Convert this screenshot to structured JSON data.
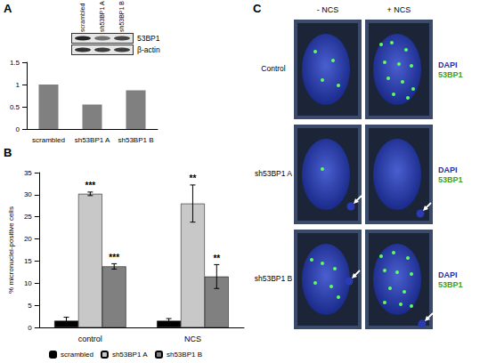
{
  "chart_data": [
    {
      "type": "bar",
      "categories": [
        "scrambled",
        "sh53BP1 A",
        "sh53BP1 B"
      ],
      "values": [
        1,
        0.55,
        0.87
      ],
      "color": "#808080",
      "ylim": [
        0,
        1.5
      ],
      "yticks": [
        0,
        0.5,
        1,
        1.5
      ],
      "grid": false
    },
    {
      "type": "bar",
      "ylabel": "% micronuclei-positive cells",
      "categories": [
        "control",
        "NCS"
      ],
      "series": [
        {
          "name": "scrambled",
          "color": "#000000",
          "values": [
            1.5,
            1.5
          ],
          "errors": [
            0.8,
            0.5
          ]
        },
        {
          "name": "sh53BP1 A",
          "color": "#c8c8c8",
          "values": [
            30.2,
            28
          ],
          "errors": [
            0.4,
            4.2
          ],
          "annotations": [
            "***",
            "**"
          ]
        },
        {
          "name": "sh53BP1 B",
          "color": "#808080",
          "values": [
            13.8,
            11.5
          ],
          "errors": [
            0.6,
            2.7
          ],
          "annotations": [
            "***",
            "**"
          ]
        }
      ],
      "ylim": [
        0,
        35
      ],
      "yticks": [
        0,
        5,
        10,
        15,
        20,
        25,
        30,
        35
      ],
      "grid": false,
      "legend": "bottom"
    }
  ],
  "panel_labels": [
    "A",
    "B",
    "C"
  ],
  "blot": {
    "lanes": [
      "scrambled",
      "sh53BP1 A",
      "sh53BP1 B"
    ],
    "rows": [
      "53BP1",
      "β-actin"
    ]
  },
  "micrographs": {
    "columns": [
      "- NCS",
      "+ NCS"
    ],
    "rows": [
      "Control",
      "sh53BP1 A",
      "sh53BP1 B"
    ],
    "channels": [
      {
        "name": "DAPI",
        "color": "#2a2aa8"
      },
      {
        "name": "53BP1",
        "color": "#2fa52f"
      }
    ]
  }
}
